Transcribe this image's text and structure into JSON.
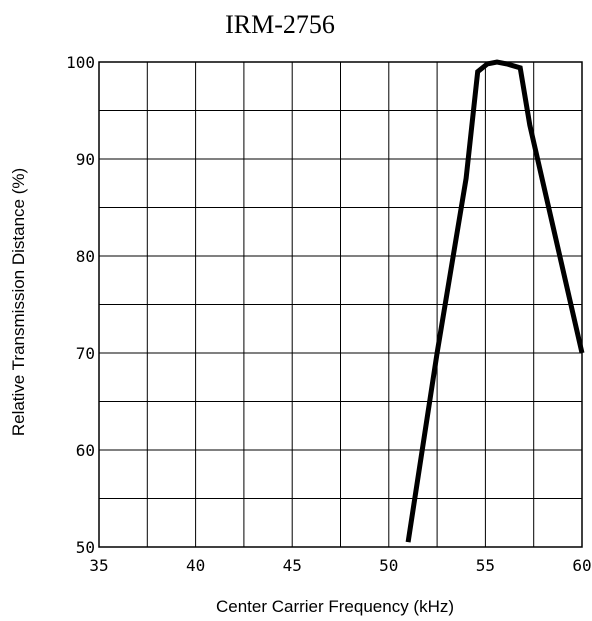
{
  "chart_data": {
    "type": "line",
    "title": "IRM-2756",
    "xlabel": "Center Carrier Frequency  (kHz)",
    "ylabel": "Relative Transmission Distance (%)",
    "xlim": [
      35,
      60
    ],
    "ylim": [
      50,
      100
    ],
    "xticks": [
      35,
      40,
      45,
      50,
      55,
      60
    ],
    "yticks": [
      50,
      60,
      70,
      80,
      90,
      100
    ],
    "x_minor_step": 2.5,
    "y_minor_step": 5,
    "grid": true,
    "series": [
      {
        "x": [
          51.0,
          52.5,
          54.0,
          54.6,
          55.1,
          55.6,
          56.1,
          56.8,
          57.3,
          60.0
        ],
        "y": [
          50.5,
          70,
          88,
          99,
          99.8,
          100,
          99.8,
          99.4,
          93.5,
          70
        ]
      }
    ]
  },
  "colors": {
    "line": "#000000",
    "grid": "#000000",
    "background": "#ffffff"
  }
}
